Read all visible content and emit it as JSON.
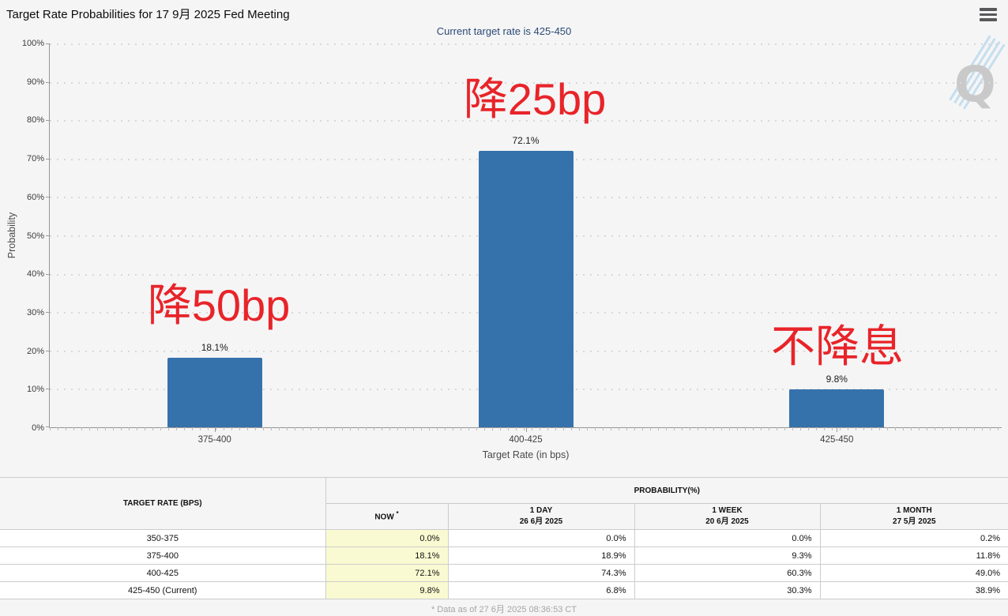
{
  "header": {
    "title": "Target Rate Probabilities for 17 9月 2025 Fed Meeting"
  },
  "chart_data": {
    "type": "bar",
    "title": "Target Rate Probabilities for 17 9月 2025 Fed Meeting",
    "subtitle": "Current target rate is 425-450",
    "categories": [
      "375-400",
      "400-425",
      "425-450"
    ],
    "values": [
      18.1,
      72.1,
      9.8
    ],
    "value_labels": [
      "18.1%",
      "72.1%",
      "9.8%"
    ],
    "xlabel": "Target Rate (in bps)",
    "ylabel": "Probability",
    "ylim": [
      0,
      100
    ],
    "y_ticks": [
      "100%",
      "90%",
      "80%",
      "70%",
      "60%",
      "50%",
      "40%",
      "30%",
      "20%",
      "10%",
      "0%"
    ],
    "grid": "dotted-horizontal",
    "legend": "none",
    "bar_color": "#3572ab",
    "annotations": [
      {
        "text": "降50bp",
        "target": "375-400",
        "color": "#e82429"
      },
      {
        "text": "降25bp",
        "target": "400-425",
        "color": "#e82429"
      },
      {
        "text": "不降息",
        "target": "425-450",
        "color": "#e82429"
      }
    ],
    "watermark": "Q"
  },
  "table": {
    "rate_header": "TARGET RATE (BPS)",
    "group_header": "PROBABILITY(%)",
    "sub_headers": {
      "now": {
        "label": "NOW",
        "sup": "*"
      },
      "day": {
        "label": "1 DAY",
        "date": "26 6月 2025"
      },
      "week": {
        "label": "1 WEEK",
        "date": "20 6月 2025"
      },
      "month": {
        "label": "1 MONTH",
        "date": "27 5月 2025"
      }
    },
    "rows": [
      {
        "rate": "350-375",
        "now": "0.0%",
        "day": "0.0%",
        "week": "0.0%",
        "month": "0.2%"
      },
      {
        "rate": "375-400",
        "now": "18.1%",
        "day": "18.9%",
        "week": "9.3%",
        "month": "11.8%"
      },
      {
        "rate": "400-425",
        "now": "72.1%",
        "day": "74.3%",
        "week": "60.3%",
        "month": "49.0%"
      },
      {
        "rate": "425-450 (Current)",
        "now": "9.8%",
        "day": "6.8%",
        "week": "30.3%",
        "month": "38.9%"
      }
    ]
  },
  "footer": {
    "note": "* Data as of 27 6月 2025 08:36:53 CT"
  },
  "colors": {
    "bar": "#3572ab",
    "annotation_red": "#e82429",
    "subtitle_navy": "#2b4a74",
    "now_highlight": "#fafad2",
    "background": "#f5f5f6"
  }
}
